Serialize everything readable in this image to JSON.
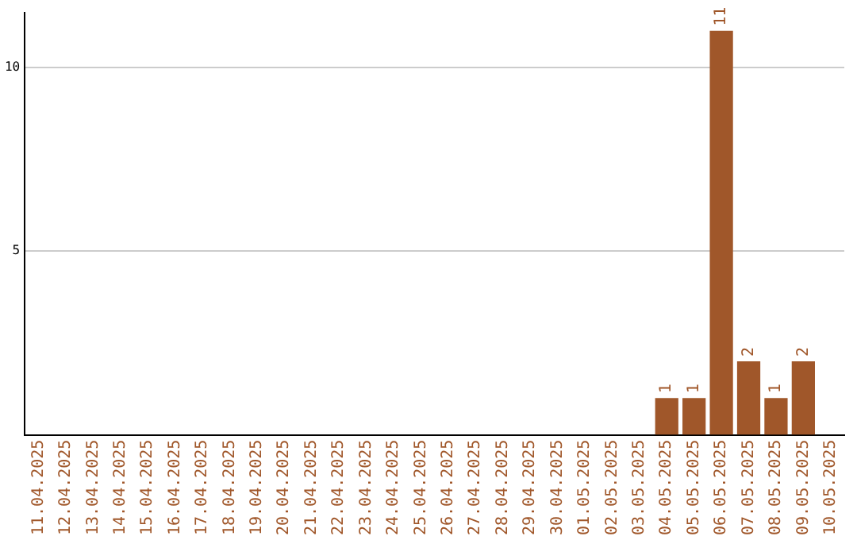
{
  "chart_data": {
    "type": "bar",
    "categories": [
      "11.04.2025",
      "12.04.2025",
      "13.04.2025",
      "14.04.2025",
      "15.04.2025",
      "16.04.2025",
      "17.04.2025",
      "18.04.2025",
      "19.04.2025",
      "20.04.2025",
      "21.04.2025",
      "22.04.2025",
      "23.04.2025",
      "24.04.2025",
      "25.04.2025",
      "26.04.2025",
      "27.04.2025",
      "28.04.2025",
      "29.04.2025",
      "30.04.2025",
      "01.05.2025",
      "02.05.2025",
      "03.05.2025",
      "04.05.2025",
      "05.05.2025",
      "06.05.2025",
      "07.05.2025",
      "08.05.2025",
      "09.05.2025",
      "10.05.2025"
    ],
    "values": [
      0,
      0,
      0,
      0,
      0,
      0,
      0,
      0,
      0,
      0,
      0,
      0,
      0,
      0,
      0,
      0,
      0,
      0,
      0,
      0,
      0,
      0,
      0,
      1,
      1,
      11,
      2,
      1,
      2,
      0
    ],
    "value_labels": [
      null,
      null,
      null,
      null,
      null,
      null,
      null,
      null,
      null,
      null,
      null,
      null,
      null,
      null,
      null,
      null,
      null,
      null,
      null,
      null,
      null,
      null,
      null,
      "1",
      "1",
      "11",
      "2",
      "1",
      "2",
      null
    ],
    "color": "#a0572a",
    "ylim": [
      0,
      11.5
    ],
    "yticks": [
      5,
      10
    ],
    "grid": "y",
    "legend": false
  }
}
